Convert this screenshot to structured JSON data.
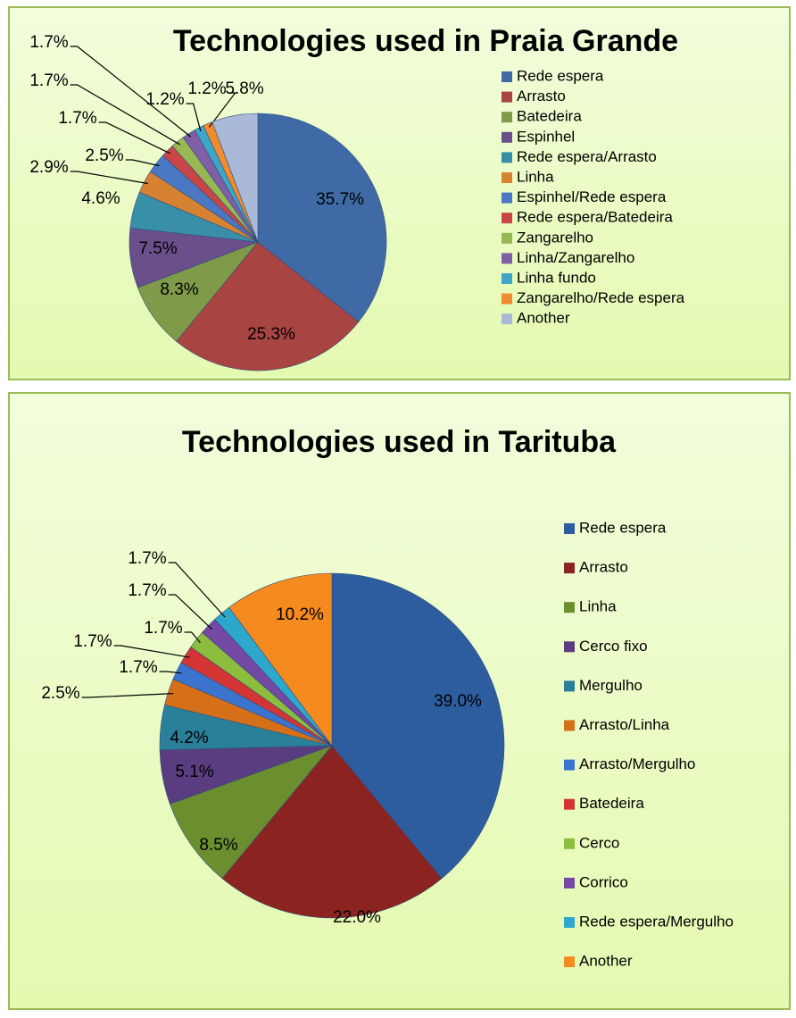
{
  "chart_data": [
    {
      "type": "pie",
      "title": "Technologies used in Praia Grande",
      "categories": [
        "Rede espera",
        "Arrasto",
        "Batedeira",
        "Espinhel",
        "Rede espera/Arrasto",
        "Linha",
        "Espinhel/Rede espera",
        "Rede espera/Batedeira",
        "Zangarelho",
        "Linha/Zangarelho",
        "Linha fundo",
        "Zangarelho/Rede espera",
        "Another"
      ],
      "values": [
        35.7,
        25.3,
        8.3,
        7.5,
        4.6,
        2.9,
        2.5,
        1.7,
        1.7,
        1.7,
        1.2,
        1.2,
        5.8
      ],
      "value_labels": [
        "35.7%",
        "25.3%",
        "8.3%",
        "7.5%",
        "4.6%",
        "2.9%",
        "2.5%",
        "1.7%",
        "1.7%",
        "1.7%",
        "1.2%",
        "1.2%",
        "5.8%"
      ],
      "colors": [
        "#3f6aa5",
        "#a84442",
        "#7f9a48",
        "#6a4f8b",
        "#3a8fa8",
        "#d68232",
        "#4a78c2",
        "#c84646",
        "#97b853",
        "#7f5fa6",
        "#3ea6c6",
        "#f08b2e",
        "#a9b9d7"
      ],
      "legend": "right"
    },
    {
      "type": "pie",
      "title": "Technologies used in Tarituba",
      "categories": [
        "Rede espera",
        "Arrasto",
        "Linha",
        "Cerco fixo",
        "Mergulho",
        "Arrasto/Linha",
        "Arrasto/Mergulho",
        "Batedeira",
        "Cerco",
        "Corrico",
        "Rede espera/Mergulho",
        "Another"
      ],
      "values": [
        39.0,
        22.0,
        8.5,
        5.1,
        4.2,
        2.5,
        1.7,
        1.7,
        1.7,
        1.7,
        1.7,
        10.2
      ],
      "value_labels": [
        "39.0%",
        "22.0%",
        "8.5%",
        "5.1%",
        "4.2%",
        "2.5%",
        "1.7%",
        "1.7%",
        "1.7%",
        "1.7%",
        "1.7%",
        "10.2%"
      ],
      "colors": [
        "#2d5d9f",
        "#8b2421",
        "#6b8e2f",
        "#5a3d80",
        "#2a7f99",
        "#d56f18",
        "#3a74cc",
        "#d33434",
        "#8dbd3c",
        "#7349a3",
        "#2ea7cc",
        "#f58a1f"
      ],
      "legend": "right"
    }
  ]
}
